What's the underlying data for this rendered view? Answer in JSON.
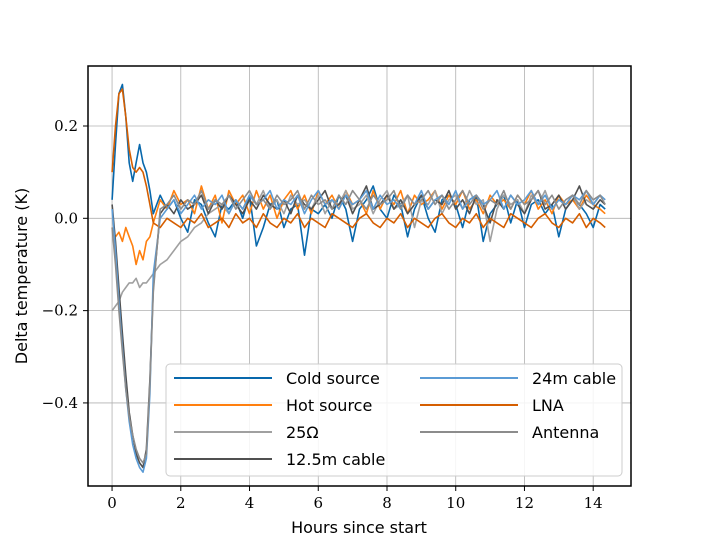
{
  "chart_data": {
    "type": "line",
    "xlabel": "Hours since start",
    "ylabel": "Delta temperature (K)",
    "xlim": [
      -0.7,
      15.1
    ],
    "ylim": [
      -0.58,
      0.33
    ],
    "xticks": [
      0,
      2,
      4,
      6,
      8,
      10,
      12,
      14
    ],
    "yticks": [
      0.2,
      0.0,
      -0.2,
      -0.4
    ],
    "ytick_labels": [
      "0.2",
      "0.0",
      "−0.2",
      "−0.4"
    ],
    "grid": true,
    "legend": {
      "placement": "lower-center",
      "columns": 2
    },
    "series": [
      {
        "name": "Cold source",
        "color": "#0868ac",
        "x": [
          0,
          0.1,
          0.2,
          0.3,
          0.4,
          0.5,
          0.6,
          0.7,
          0.8,
          0.9,
          1.0,
          1.1,
          1.2,
          1.4,
          1.6,
          1.8,
          2.0,
          2.2,
          2.4,
          2.6,
          2.8,
          3.0,
          3.2,
          3.4,
          3.6,
          3.8,
          4.0,
          4.2,
          4.4,
          4.6,
          4.8,
          5.0,
          5.2,
          5.4,
          5.6,
          5.8,
          6.0,
          6.2,
          6.4,
          6.6,
          6.8,
          7.0,
          7.2,
          7.4,
          7.6,
          7.8,
          8.0,
          8.2,
          8.4,
          8.6,
          8.8,
          9.0,
          9.2,
          9.4,
          9.6,
          9.8,
          10.0,
          10.2,
          10.4,
          10.6,
          10.8,
          11.0,
          11.2,
          11.4,
          11.6,
          11.8,
          12.0,
          12.2,
          12.4,
          12.6,
          12.8,
          13.0,
          13.2,
          13.4,
          13.6,
          13.8,
          14.0,
          14.2,
          14.35
        ],
        "y": [
          0.04,
          0.16,
          0.27,
          0.29,
          0.22,
          0.12,
          0.08,
          0.12,
          0.16,
          0.12,
          0.1,
          0.06,
          0.01,
          0.05,
          0.02,
          0.04,
          0.0,
          -0.03,
          0.04,
          0.03,
          -0.01,
          -0.04,
          0.03,
          0.02,
          0.04,
          0.0,
          0.05,
          -0.06,
          -0.02,
          0.03,
          0.04,
          -0.02,
          0.02,
          0.03,
          -0.08,
          0.02,
          0.01,
          0.03,
          0.0,
          0.05,
          0.02,
          -0.05,
          0.02,
          0.04,
          0.07,
          0.02,
          0.0,
          0.05,
          0.03,
          -0.04,
          0.02,
          0.05,
          0.0,
          -0.03,
          0.04,
          0.05,
          0.03,
          -0.02,
          0.04,
          0.05,
          -0.05,
          0.01,
          0.03,
          0.05,
          -0.01,
          0.04,
          -0.02,
          0.03,
          0.04,
          0.01,
          0.03,
          -0.04,
          0.02,
          0.04,
          0.03,
          0.01,
          -0.02,
          0.03,
          0.02
        ]
      },
      {
        "name": "Hot source",
        "color": "#ff7f0e",
        "x": [
          0,
          0.1,
          0.2,
          0.3,
          0.4,
          0.5,
          0.6,
          0.7,
          0.8,
          0.9,
          1.0,
          1.1,
          1.2,
          1.4,
          1.6,
          1.8,
          2.0,
          2.2,
          2.4,
          2.6,
          2.8,
          3.0,
          3.2,
          3.4,
          3.6,
          3.8,
          4.0,
          4.2,
          4.4,
          4.6,
          4.8,
          5.0,
          5.2,
          5.4,
          5.6,
          5.8,
          6.0,
          6.2,
          6.4,
          6.6,
          6.8,
          7.0,
          7.2,
          7.4,
          7.6,
          7.8,
          8.0,
          8.2,
          8.4,
          8.6,
          8.8,
          9.0,
          9.2,
          9.4,
          9.6,
          9.8,
          10.0,
          10.2,
          10.4,
          10.6,
          10.8,
          11.0,
          11.2,
          11.4,
          11.6,
          11.8,
          12.0,
          12.2,
          12.4,
          12.6,
          12.8,
          13.0,
          13.2,
          13.4,
          13.6,
          13.8,
          14.0,
          14.2,
          14.35
        ],
        "y": [
          -0.02,
          -0.04,
          -0.03,
          -0.05,
          -0.02,
          -0.04,
          -0.06,
          -0.1,
          -0.07,
          -0.09,
          -0.05,
          -0.04,
          -0.01,
          0.04,
          0.02,
          0.06,
          0.03,
          0.04,
          0.01,
          0.07,
          0.02,
          0.05,
          -0.01,
          0.06,
          0.03,
          0.05,
          0.01,
          0.06,
          0.02,
          0.05,
          0.0,
          0.04,
          0.06,
          0.02,
          0.05,
          0.01,
          0.06,
          0.03,
          0.05,
          0.02,
          0.06,
          0.03,
          0.04,
          0.01,
          0.06,
          0.02,
          0.05,
          0.03,
          0.06,
          0.01,
          0.05,
          0.03,
          0.04,
          0.06,
          0.02,
          0.05,
          0.03,
          0.06,
          0.02,
          0.04,
          0.01,
          0.05,
          0.03,
          0.04,
          0.02,
          0.05,
          0.03,
          0.06,
          0.02,
          0.04,
          0.01,
          0.05,
          0.03,
          0.04,
          0.02,
          0.05,
          0.03,
          0.02,
          0.01
        ]
      },
      {
        "name": "25Ω",
        "color": "#a0a0a0",
        "x": [
          0,
          0.1,
          0.2,
          0.3,
          0.4,
          0.5,
          0.6,
          0.7,
          0.8,
          0.9,
          1.0,
          1.1,
          1.2,
          1.4,
          1.6,
          1.8,
          2.0,
          2.2,
          2.4,
          2.6,
          2.8,
          3.0,
          3.2,
          3.4,
          3.6,
          3.8,
          4.0,
          4.2,
          4.4,
          4.6,
          4.8,
          5.0,
          5.2,
          5.4,
          5.6,
          5.8,
          6.0,
          6.2,
          6.4,
          6.6,
          6.8,
          7.0,
          7.2,
          7.4,
          7.6,
          7.8,
          8.0,
          8.2,
          8.4,
          8.6,
          8.8,
          9.0,
          9.2,
          9.4,
          9.6,
          9.8,
          10.0,
          10.2,
          10.4,
          10.6,
          10.8,
          11.0,
          11.2,
          11.4,
          11.6,
          11.8,
          12.0,
          12.2,
          12.4,
          12.6,
          12.8,
          13.0,
          13.2,
          13.4,
          13.6,
          13.8,
          14.0,
          14.2,
          14.35
        ],
        "y": [
          -0.2,
          -0.19,
          -0.18,
          -0.16,
          -0.15,
          -0.14,
          -0.14,
          -0.13,
          -0.15,
          -0.14,
          -0.14,
          -0.13,
          -0.12,
          -0.1,
          -0.09,
          -0.07,
          -0.05,
          -0.04,
          -0.02,
          -0.01,
          0.01,
          0.02,
          0.03,
          0.01,
          0.04,
          0.02,
          0.05,
          0.03,
          0.06,
          0.02,
          0.04,
          0.01,
          0.05,
          0.03,
          0.04,
          0.02,
          0.05,
          0.01,
          0.04,
          0.03,
          0.06,
          0.02,
          0.03,
          0.05,
          0.01,
          0.04,
          0.06,
          0.02,
          0.03,
          0.05,
          -0.02,
          0.04,
          0.03,
          0.06,
          0.01,
          0.04,
          0.05,
          0.02,
          0.06,
          0.03,
          0.04,
          -0.05,
          0.02,
          0.05,
          0.03,
          0.04,
          0.01,
          0.05,
          0.03,
          0.06,
          0.02,
          0.04,
          0.03,
          0.05,
          0.02,
          0.04,
          0.03,
          0.05,
          0.04
        ]
      },
      {
        "name": "12.5m cable",
        "color": "#505050",
        "x": [
          0,
          0.1,
          0.2,
          0.3,
          0.4,
          0.5,
          0.6,
          0.7,
          0.8,
          0.9,
          1.0,
          1.1,
          1.2,
          1.4,
          1.6,
          1.8,
          2.0,
          2.2,
          2.4,
          2.6,
          2.8,
          3.0,
          3.2,
          3.4,
          3.6,
          3.8,
          4.0,
          4.2,
          4.4,
          4.6,
          4.8,
          5.0,
          5.2,
          5.4,
          5.6,
          5.8,
          6.0,
          6.2,
          6.4,
          6.6,
          6.8,
          7.0,
          7.2,
          7.4,
          7.6,
          7.8,
          8.0,
          8.2,
          8.4,
          8.6,
          8.8,
          9.0,
          9.2,
          9.4,
          9.6,
          9.8,
          10.0,
          10.2,
          10.4,
          10.6,
          10.8,
          11.0,
          11.2,
          11.4,
          11.6,
          11.8,
          12.0,
          12.2,
          12.4,
          12.6,
          12.8,
          13.0,
          13.2,
          13.4,
          13.6,
          13.8,
          14.0,
          14.2,
          14.35
        ],
        "y": [
          0.03,
          -0.05,
          -0.15,
          -0.25,
          -0.34,
          -0.42,
          -0.47,
          -0.51,
          -0.53,
          -0.54,
          -0.5,
          -0.35,
          -0.15,
          0.01,
          0.03,
          0.01,
          0.04,
          0.02,
          0.03,
          0.05,
          0.01,
          0.04,
          0.02,
          0.05,
          0.03,
          0.01,
          0.04,
          0.02,
          0.05,
          0.03,
          0.02,
          0.04,
          0.01,
          0.05,
          0.03,
          0.02,
          0.04,
          0.06,
          0.02,
          0.03,
          0.05,
          0.01,
          0.04,
          0.07,
          0.02,
          0.03,
          0.05,
          0.02,
          0.04,
          0.01,
          0.03,
          0.05,
          0.02,
          0.04,
          0.03,
          0.06,
          0.02,
          0.04,
          0.01,
          0.05,
          0.03,
          -0.01,
          0.04,
          0.02,
          0.05,
          0.03,
          0.01,
          0.04,
          0.06,
          0.02,
          0.03,
          0.05,
          0.02,
          0.04,
          0.07,
          0.03,
          0.02,
          0.04,
          0.03
        ]
      },
      {
        "name": "24m cable",
        "color": "#5b9bd5",
        "x": [
          0,
          0.1,
          0.2,
          0.3,
          0.4,
          0.5,
          0.6,
          0.7,
          0.8,
          0.9,
          1.0,
          1.1,
          1.2,
          1.4,
          1.6,
          1.8,
          2.0,
          2.2,
          2.4,
          2.6,
          2.8,
          3.0,
          3.2,
          3.4,
          3.6,
          3.8,
          4.0,
          4.2,
          4.4,
          4.6,
          4.8,
          5.0,
          5.2,
          5.4,
          5.6,
          5.8,
          6.0,
          6.2,
          6.4,
          6.6,
          6.8,
          7.0,
          7.2,
          7.4,
          7.6,
          7.8,
          8.0,
          8.2,
          8.4,
          8.6,
          8.8,
          9.0,
          9.2,
          9.4,
          9.6,
          9.8,
          10.0,
          10.2,
          10.4,
          10.6,
          10.8,
          11.0,
          11.2,
          11.4,
          11.6,
          11.8,
          12.0,
          12.2,
          12.4,
          12.6,
          12.8,
          13.0,
          13.2,
          13.4,
          13.6,
          13.8,
          14.0,
          14.2,
          14.35
        ],
        "y": [
          0.02,
          -0.07,
          -0.18,
          -0.28,
          -0.37,
          -0.44,
          -0.49,
          -0.52,
          -0.54,
          -0.55,
          -0.52,
          -0.38,
          -0.12,
          0.0,
          0.02,
          0.04,
          0.01,
          0.03,
          0.05,
          0.02,
          0.04,
          0.03,
          0.05,
          0.01,
          0.04,
          0.02,
          0.05,
          0.03,
          0.04,
          0.06,
          0.02,
          0.04,
          0.03,
          0.05,
          0.01,
          0.04,
          0.06,
          0.03,
          0.04,
          0.02,
          0.05,
          0.03,
          0.04,
          0.06,
          0.02,
          0.05,
          0.03,
          0.04,
          0.02,
          0.05,
          0.03,
          0.06,
          0.02,
          0.04,
          0.05,
          0.03,
          0.06,
          0.02,
          0.04,
          0.05,
          0.03,
          0.04,
          0.06,
          0.02,
          0.05,
          0.03,
          0.04,
          0.06,
          0.03,
          0.05,
          0.02,
          0.04,
          0.03,
          0.05,
          0.04,
          0.06,
          0.03,
          0.05,
          0.04
        ]
      },
      {
        "name": "LNA",
        "color": "#d55e00",
        "x": [
          0,
          0.1,
          0.2,
          0.3,
          0.4,
          0.5,
          0.6,
          0.7,
          0.8,
          0.9,
          1.0,
          1.1,
          1.2,
          1.4,
          1.6,
          1.8,
          2.0,
          2.2,
          2.4,
          2.6,
          2.8,
          3.0,
          3.2,
          3.4,
          3.6,
          3.8,
          4.0,
          4.2,
          4.4,
          4.6,
          4.8,
          5.0,
          5.2,
          5.4,
          5.6,
          5.8,
          6.0,
          6.2,
          6.4,
          6.6,
          6.8,
          7.0,
          7.2,
          7.4,
          7.6,
          7.8,
          8.0,
          8.2,
          8.4,
          8.6,
          8.8,
          9.0,
          9.2,
          9.4,
          9.6,
          9.8,
          10.0,
          10.2,
          10.4,
          10.6,
          10.8,
          11.0,
          11.2,
          11.4,
          11.6,
          11.8,
          12.0,
          12.2,
          12.4,
          12.6,
          12.8,
          13.0,
          13.2,
          13.4,
          13.6,
          13.8,
          14.0,
          14.2,
          14.35
        ],
        "y": [
          0.1,
          0.2,
          0.27,
          0.28,
          0.22,
          0.15,
          0.11,
          0.1,
          0.11,
          0.1,
          0.07,
          0.03,
          -0.01,
          -0.02,
          0.0,
          -0.01,
          -0.02,
          0.0,
          -0.01,
          0.01,
          -0.02,
          -0.01,
          0.0,
          -0.02,
          0.01,
          -0.01,
          0.0,
          -0.02,
          0.01,
          -0.01,
          -0.02,
          0.0,
          -0.01,
          0.01,
          -0.02,
          0.0,
          -0.01,
          -0.02,
          0.01,
          0.0,
          -0.01,
          -0.02,
          0.0,
          0.01,
          -0.01,
          -0.02,
          0.0,
          -0.01,
          0.01,
          -0.02,
          0.0,
          -0.01,
          -0.02,
          0.0,
          0.01,
          -0.01,
          -0.02,
          0.0,
          -0.01,
          0.01,
          -0.02,
          0.0,
          -0.01,
          -0.02,
          0.01,
          0.0,
          -0.01,
          -0.02,
          0.0,
          0.01,
          -0.01,
          -0.02,
          0.0,
          -0.01,
          0.01,
          -0.02,
          0.0,
          -0.01,
          -0.02
        ]
      },
      {
        "name": "Antenna",
        "color": "#8c8c8c",
        "x": [
          0,
          0.1,
          0.2,
          0.3,
          0.4,
          0.5,
          0.6,
          0.7,
          0.8,
          0.9,
          1.0,
          1.1,
          1.2,
          1.4,
          1.6,
          1.8,
          2.0,
          2.2,
          2.4,
          2.6,
          2.8,
          3.0,
          3.2,
          3.4,
          3.6,
          3.8,
          4.0,
          4.2,
          4.4,
          4.6,
          4.8,
          5.0,
          5.2,
          5.4,
          5.6,
          5.8,
          6.0,
          6.2,
          6.4,
          6.6,
          6.8,
          7.0,
          7.2,
          7.4,
          7.6,
          7.8,
          8.0,
          8.2,
          8.4,
          8.6,
          8.8,
          9.0,
          9.2,
          9.4,
          9.6,
          9.8,
          10.0,
          10.2,
          10.4,
          10.6,
          10.8,
          11.0,
          11.2,
          11.4,
          11.6,
          11.8,
          12.0,
          12.2,
          12.4,
          12.6,
          12.8,
          13.0,
          13.2,
          13.4,
          13.6,
          13.8,
          14.0,
          14.2,
          14.35
        ],
        "y": [
          -0.02,
          -0.1,
          -0.2,
          -0.29,
          -0.37,
          -0.43,
          -0.47,
          -0.5,
          -0.52,
          -0.53,
          -0.51,
          -0.36,
          -0.16,
          0.02,
          0.03,
          0.05,
          0.02,
          0.04,
          0.03,
          0.06,
          0.02,
          0.04,
          0.03,
          0.05,
          0.02,
          0.04,
          0.06,
          0.03,
          0.04,
          0.02,
          0.05,
          0.03,
          0.04,
          0.06,
          0.02,
          0.05,
          0.03,
          0.04,
          0.02,
          0.05,
          0.03,
          0.06,
          0.04,
          0.02,
          0.05,
          0.03,
          0.04,
          0.06,
          0.02,
          0.05,
          0.03,
          0.04,
          0.06,
          0.03,
          0.05,
          0.02,
          0.04,
          0.06,
          0.03,
          0.05,
          0.02,
          0.04,
          0.03,
          0.06,
          0.02,
          0.05,
          0.03,
          0.04,
          0.06,
          0.03,
          0.05,
          0.02,
          0.04,
          0.05,
          0.03,
          0.06,
          0.04,
          0.05,
          0.03
        ]
      }
    ]
  }
}
